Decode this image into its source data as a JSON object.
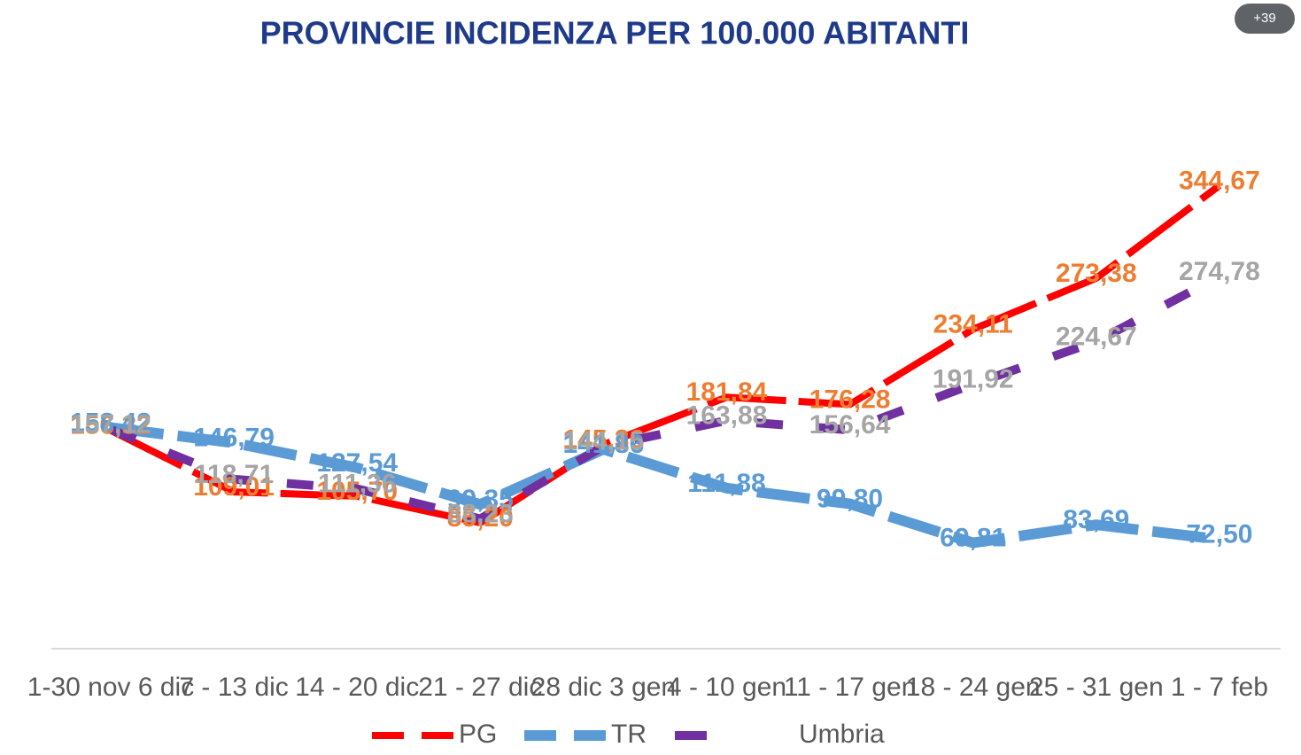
{
  "chart_data": {
    "type": "line",
    "title": "PROVINCIE INCIDENZA PER 100.000 ABITANTI",
    "badge": "+39",
    "categories": [
      "1-30 nov 6 dic",
      "7 - 13 dic",
      "14 - 20 dic",
      "21 - 27 dic",
      "28 dic 3 gen",
      "4 - 10 gen",
      "11 - 17 gen",
      "18 - 24 gen",
      "25 - 31 gen",
      "1 - 7 feb"
    ],
    "series": [
      {
        "name": "PG",
        "color": "#ff0000",
        "label_color": "#ed7d31",
        "values": [
          156.32,
          109.01,
          105.7,
          85.2,
          145.36,
          181.84,
          176.28,
          234.11,
          273.38,
          344.67
        ],
        "value_labels": [
          "156,32",
          "109,01",
          "105,70",
          "85,20",
          "145,36",
          "181,84",
          "176,28",
          "234,11",
          "273,38",
          "344,67"
        ]
      },
      {
        "name": "TR",
        "color": "#5b9bd5",
        "label_color": "#5b9bd5",
        "values": [
          158.42,
          146.79,
          127.54,
          99.35,
          141.86,
          111.88,
          99.8,
          69.81,
          83.69,
          72.5
        ],
        "value_labels": [
          "158,42",
          "146,79",
          "127,54",
          "99,35",
          "141,86",
          "111,88",
          "99,80",
          "69,81",
          "83,69",
          "72,50"
        ]
      },
      {
        "name": "Umbria",
        "color": "#7030a0",
        "label_color": "#a5a5a5",
        "values": [
          157.12,
          118.71,
          111.36,
          88.23,
          144.15,
          163.88,
          156.64,
          191.92,
          224.67,
          274.78
        ],
        "value_labels": [
          "157,12",
          "118,71",
          "111,36",
          "88,23",
          "144,15",
          "163,88",
          "156,64",
          "191,92",
          "224,67",
          "274,78"
        ]
      }
    ]
  }
}
